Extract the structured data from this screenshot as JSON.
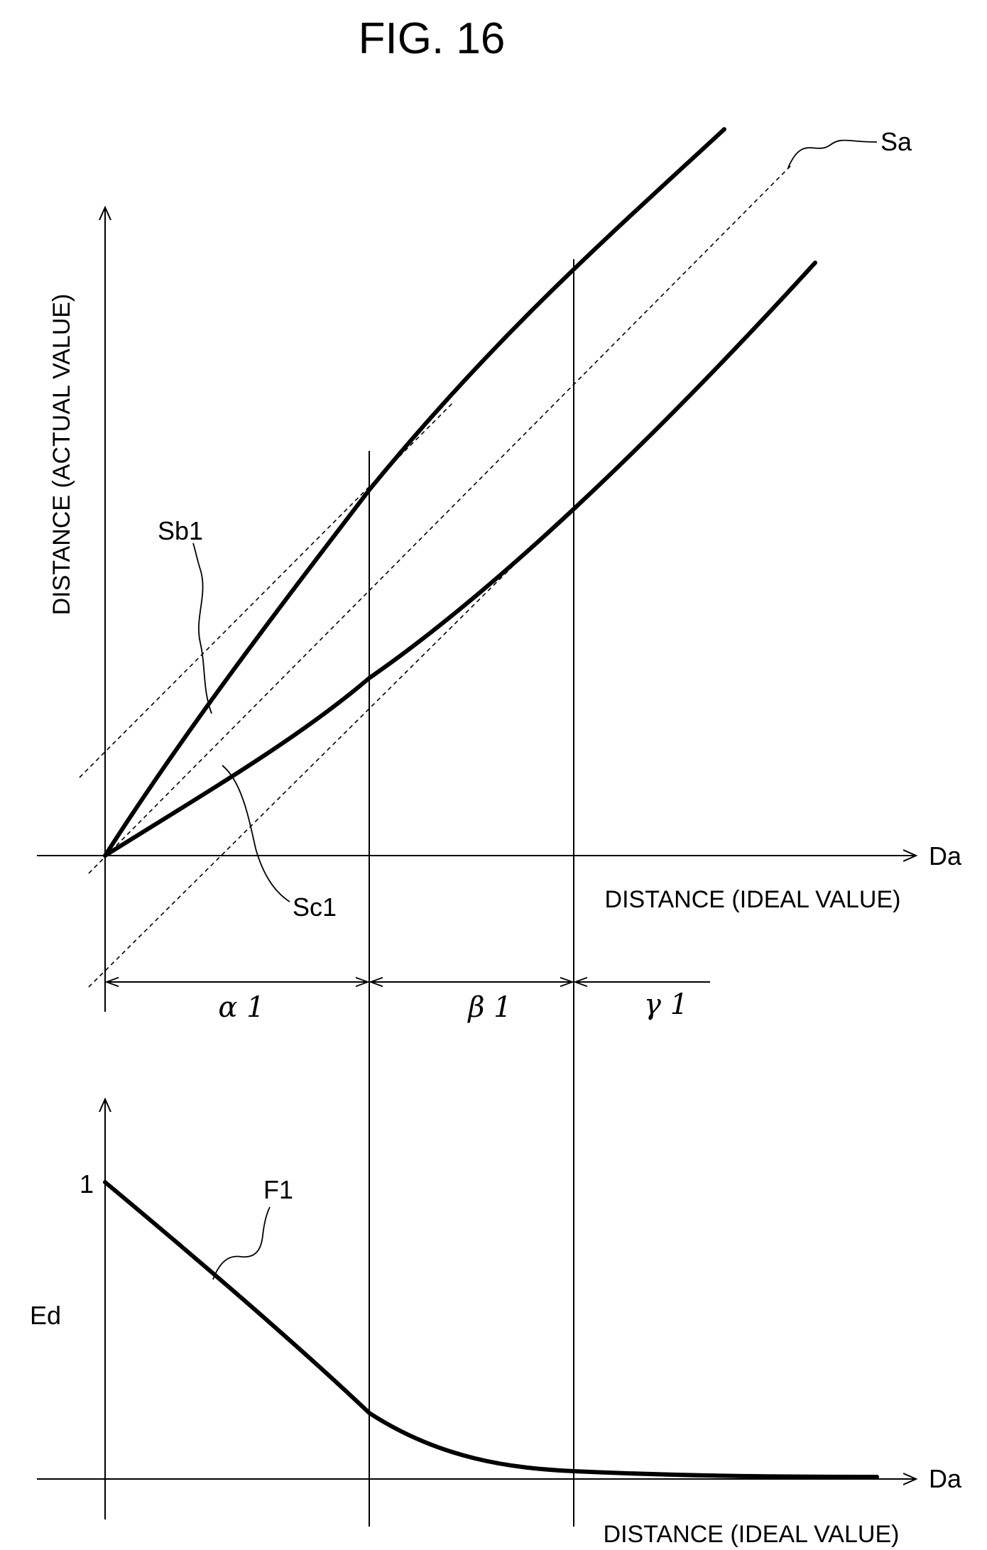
{
  "figure": {
    "title": "FIG. 16"
  },
  "top_graph": {
    "y_axis_label": "DISTANCE (ACTUAL VALUE)",
    "x_axis_symbol": "Da",
    "x_axis_label": "DISTANCE (IDEAL VALUE)",
    "curve_labels": {
      "sa": "Sa",
      "sb1": "Sb1",
      "sc1": "Sc1"
    },
    "ranges": {
      "alpha": "α 1",
      "beta": "β 1",
      "gamma": "γ 1"
    }
  },
  "bottom_graph": {
    "y_axis_label": "Ed",
    "y_tick_one": "1",
    "curve_label": "F1",
    "x_axis_symbol": "Da",
    "x_axis_label": "DISTANCE (IDEAL VALUE)"
  }
}
